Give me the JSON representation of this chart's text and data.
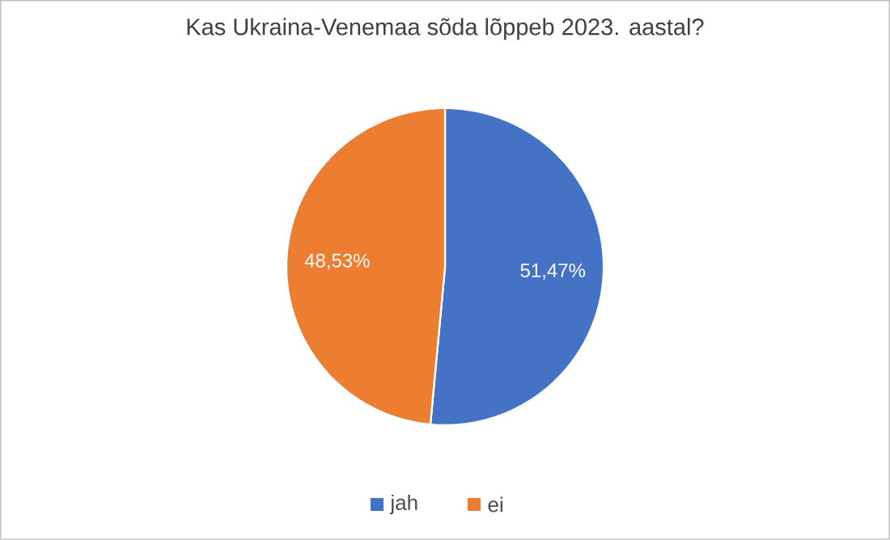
{
  "chart_data": {
    "type": "pie",
    "title": "Kas Ukraina-Venemaa sõda lõppeb 2023. aastal?",
    "categories": [
      "jah",
      "ei"
    ],
    "values": [
      51.47,
      48.53
    ],
    "value_labels": [
      "51,47%",
      "48,53%"
    ],
    "colors": [
      "#4472c4",
      "#ed7d31"
    ],
    "legend": "bottom"
  }
}
